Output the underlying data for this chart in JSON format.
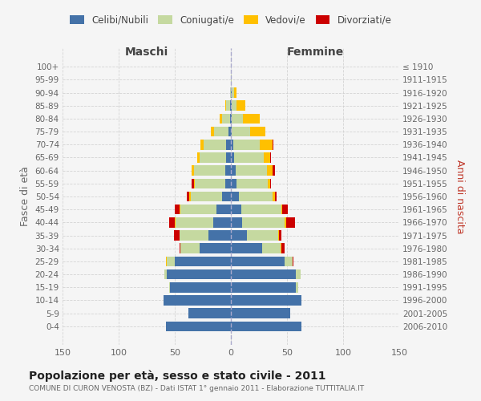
{
  "age_groups": [
    "0-4",
    "5-9",
    "10-14",
    "15-19",
    "20-24",
    "25-29",
    "30-34",
    "35-39",
    "40-44",
    "45-49",
    "50-54",
    "55-59",
    "60-64",
    "65-69",
    "70-74",
    "75-79",
    "80-84",
    "85-89",
    "90-94",
    "95-99",
    "100+"
  ],
  "birth_years": [
    "2006-2010",
    "2001-2005",
    "1996-2000",
    "1991-1995",
    "1986-1990",
    "1981-1985",
    "1976-1980",
    "1971-1975",
    "1966-1970",
    "1961-1965",
    "1956-1960",
    "1951-1955",
    "1946-1950",
    "1941-1945",
    "1936-1940",
    "1931-1935",
    "1926-1930",
    "1921-1925",
    "1916-1920",
    "1911-1915",
    "≤ 1910"
  ],
  "male_celibi": [
    58,
    38,
    60,
    54,
    57,
    50,
    28,
    20,
    16,
    13,
    8,
    5,
    5,
    4,
    4,
    2,
    1,
    1,
    0,
    0,
    0
  ],
  "male_coniugati": [
    0,
    0,
    0,
    1,
    2,
    7,
    17,
    26,
    33,
    32,
    28,
    27,
    28,
    24,
    20,
    13,
    7,
    3,
    1,
    0,
    0
  ],
  "male_vedovi": [
    0,
    0,
    0,
    0,
    0,
    1,
    0,
    0,
    1,
    1,
    1,
    1,
    2,
    2,
    3,
    3,
    2,
    1,
    0,
    0,
    0
  ],
  "male_divorziati": [
    0,
    0,
    0,
    0,
    0,
    0,
    1,
    5,
    5,
    4,
    2,
    2,
    0,
    0,
    0,
    0,
    0,
    0,
    0,
    0,
    0
  ],
  "female_nubili": [
    63,
    53,
    63,
    58,
    58,
    48,
    28,
    14,
    10,
    9,
    7,
    5,
    4,
    3,
    2,
    1,
    1,
    1,
    1,
    0,
    0
  ],
  "female_coniugate": [
    0,
    0,
    0,
    2,
    4,
    7,
    16,
    28,
    38,
    36,
    30,
    28,
    28,
    26,
    24,
    16,
    10,
    4,
    2,
    1,
    0
  ],
  "female_vedove": [
    0,
    0,
    0,
    0,
    0,
    0,
    1,
    1,
    1,
    1,
    2,
    2,
    5,
    6,
    11,
    14,
    15,
    8,
    2,
    0,
    0
  ],
  "female_divorziate": [
    0,
    0,
    0,
    0,
    0,
    1,
    3,
    2,
    8,
    5,
    2,
    1,
    2,
    1,
    1,
    0,
    0,
    0,
    0,
    0,
    0
  ],
  "color_celibi": "#4472a8",
  "color_coniugati": "#c5d9a0",
  "color_vedovi": "#ffc000",
  "color_divorziati": "#cc0000",
  "title": "Popolazione per età, sesso e stato civile - 2011",
  "subtitle": "COMUNE DI CURON VENOSTA (BZ) - Dati ISTAT 1° gennaio 2011 - Elaborazione TUTTITALIA.IT",
  "label_maschi": "Maschi",
  "label_femmine": "Femmine",
  "ylabel_left": "Fasce di età",
  "ylabel_right": "Anni di nascita",
  "legend_labels": [
    "Celibi/Nubili",
    "Coniugati/e",
    "Vedovi/e",
    "Divorziati/e"
  ],
  "xlim": 150,
  "bg_color": "#f5f5f5",
  "grid_color": "#cccccc"
}
